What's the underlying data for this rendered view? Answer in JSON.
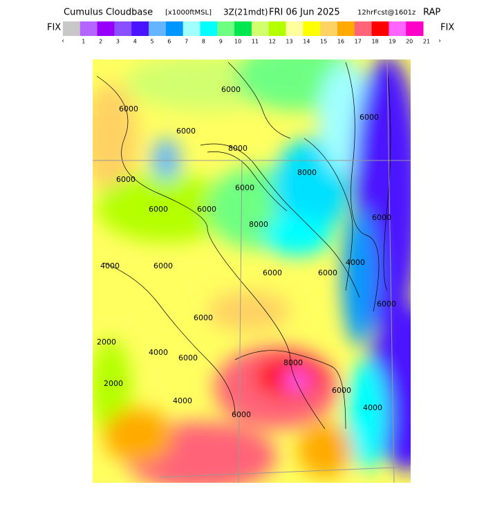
{
  "header": {
    "title": "Cumulus Cloudbase",
    "units": "[x1000ftMSL]",
    "valid": "3Z(21mdt)",
    "date": "FRI 06 Jun 2025",
    "forecast": "12hrFcst@1601z",
    "model": "RAP"
  },
  "colorbar": {
    "left_label": "FIX",
    "right_label": "FIX",
    "start_arrow": "‹",
    "end_arrow": "›",
    "ticks": [
      "1",
      "2",
      "3",
      "4",
      "5",
      "6",
      "7",
      "8",
      "9",
      "10",
      "11",
      "12",
      "13",
      "14",
      "15",
      "16",
      "17",
      "18",
      "19",
      "20",
      "21"
    ],
    "colors": [
      "#c8c8c8",
      "#b464ff",
      "#9600fa",
      "#8a50ff",
      "#4b14ff",
      "#64b4ff",
      "#0096ff",
      "#a0ffff",
      "#00ffff",
      "#6eff82",
      "#00e650",
      "#d2ff6e",
      "#b4ff00",
      "#ffffa0",
      "#ffff00",
      "#ffd264",
      "#ffaa00",
      "#ff6478",
      "#ff0000",
      "#ff64ff",
      "#ff00c8"
    ]
  },
  "map": {
    "contour_labels": [
      "6000",
      "6000",
      "6000",
      "6000",
      "8000",
      "6000",
      "8000",
      "6000",
      "6000",
      "6000",
      "4000",
      "6000",
      "8000",
      "6000",
      "6000",
      "6000",
      "4000",
      "6000",
      "2000",
      "4000",
      "6000",
      "8000",
      "6000",
      "2000",
      "6000",
      "4000",
      "6000",
      "4000"
    ]
  }
}
